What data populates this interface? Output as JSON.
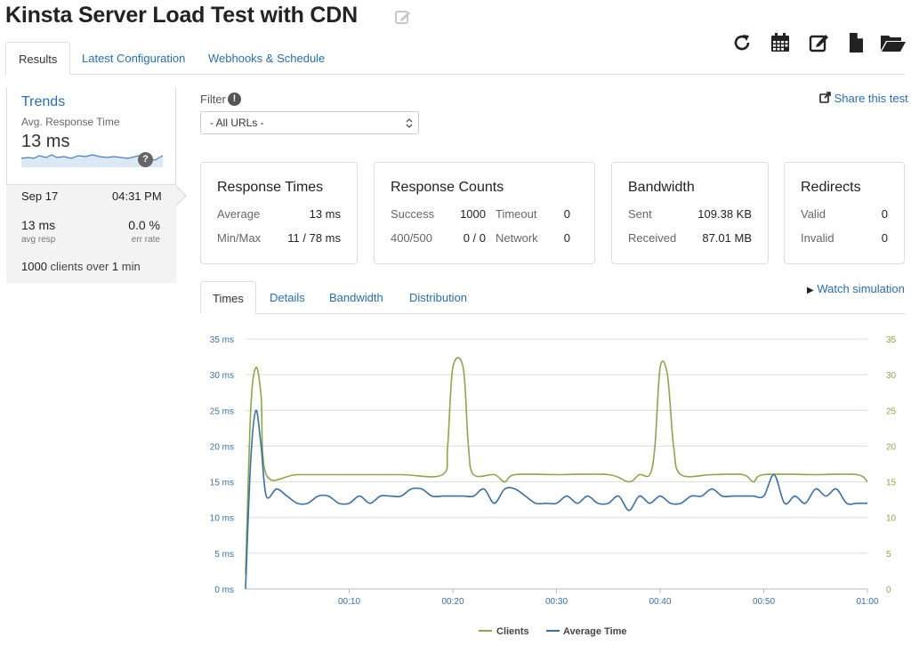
{
  "page": {
    "title": "Kinsta Server Load Test with CDN"
  },
  "tabs": [
    {
      "label": "Results",
      "active": true
    },
    {
      "label": "Latest Configuration",
      "active": false
    },
    {
      "label": "Webhooks & Schedule",
      "active": false
    }
  ],
  "toolbar_icons": [
    "refresh-icon",
    "calendar-icon",
    "edit-icon",
    "document-icon",
    "folder-open-icon"
  ],
  "sidebar": {
    "trends_title": "Trends",
    "trends_subtitle": "Avg. Response Time",
    "trends_value": "13 ms",
    "help_badge": "?",
    "run": {
      "date": "Sep 17",
      "time": "04:31 PM",
      "avg_resp_value": "13 ms",
      "avg_resp_label": "avg resp",
      "err_rate_value": "0.0 %",
      "err_rate_label": "err rate",
      "clients_count": "1000",
      "clients_text": "clients over",
      "duration_value": "1",
      "duration_unit": "min"
    }
  },
  "filter": {
    "label": "Filter",
    "info": "!",
    "selected": "- All URLs -",
    "share_label": "Share this test"
  },
  "cards": {
    "response_times": {
      "title": "Response Times",
      "average_label": "Average",
      "average_value": "13 ms",
      "minmax_label": "Min/Max",
      "minmax_value": "11 / 78 ms"
    },
    "response_counts": {
      "title": "Response Counts",
      "success_label": "Success",
      "success_value": "1000",
      "timeout_label": "Timeout",
      "timeout_value": "0",
      "err_label": "400/500",
      "err_value": "0 / 0",
      "network_label": "Network",
      "network_value": "0"
    },
    "bandwidth": {
      "title": "Bandwidth",
      "sent_label": "Sent",
      "sent_value": "109.38 KB",
      "received_label": "Received",
      "received_value": "87.01 MB"
    },
    "redirects": {
      "title": "Redirects",
      "valid_label": "Valid",
      "valid_value": "0",
      "invalid_label": "Invalid",
      "invalid_value": "0"
    }
  },
  "chart_tabs": [
    {
      "label": "Times",
      "active": true
    },
    {
      "label": "Details",
      "active": false
    },
    {
      "label": "Bandwidth",
      "active": false
    },
    {
      "label": "Distribution",
      "active": false
    }
  ],
  "watch_label": "Watch simulation",
  "colors": {
    "clients": "#8aa84b",
    "average_time": "#3a6ea5",
    "link": "#2a6db0"
  },
  "chart_data": {
    "type": "line",
    "title": "",
    "x_ticks": [
      "00:10",
      "00:20",
      "00:30",
      "00:40",
      "00:50",
      "01:00"
    ],
    "x_range_seconds": [
      0,
      60
    ],
    "y_left_ticks": [
      "0 ms",
      "5 ms",
      "10 ms",
      "15 ms",
      "20 ms",
      "25 ms",
      "30 ms",
      "35 ms"
    ],
    "y_left_range": [
      0,
      35
    ],
    "y_right_ticks": [
      "0",
      "5",
      "10",
      "15",
      "20",
      "25",
      "30",
      "35"
    ],
    "y_right_range": [
      0,
      35
    ],
    "grid": true,
    "legend_position": "bottom",
    "series": [
      {
        "name": "Clients",
        "axis": "right",
        "x": [
          0,
          0.5,
          1,
          1.5,
          2,
          5,
          10,
          15,
          19,
          19.5,
          20,
          21,
          21.5,
          22,
          24,
          25,
          26,
          30,
          35,
          37,
          38,
          39,
          39.5,
          40,
          40.7,
          41.3,
          42,
          45,
          48,
          49,
          50,
          55,
          59,
          60
        ],
        "values": [
          2,
          25,
          31,
          27,
          16,
          16,
          16,
          16,
          16,
          20,
          31,
          31,
          20,
          16,
          16,
          15,
          16,
          16,
          16,
          15,
          16,
          16,
          20,
          31,
          30,
          20,
          16,
          16,
          16,
          15,
          16,
          16,
          16,
          15
        ]
      },
      {
        "name": "Average Time",
        "axis": "left",
        "x": [
          0,
          0.5,
          1,
          1.5,
          2,
          3,
          4,
          5,
          6,
          7,
          8,
          9,
          10,
          11,
          12,
          13,
          14,
          15,
          16,
          17,
          18,
          19,
          20,
          21,
          22,
          23,
          24,
          25,
          26,
          27,
          28,
          29,
          30,
          31,
          32,
          33,
          34,
          35,
          36,
          37,
          38,
          39,
          40,
          41,
          42,
          43,
          44,
          45,
          46,
          47,
          48,
          49,
          50,
          51,
          52,
          53,
          54,
          55,
          56,
          57,
          58,
          59,
          60
        ],
        "values": [
          0,
          18,
          25,
          20,
          13,
          14,
          13,
          12,
          12,
          13,
          13,
          12,
          12,
          13,
          12,
          13,
          13,
          13,
          14,
          14,
          13,
          13,
          13,
          13,
          13,
          14,
          12,
          14,
          14,
          13,
          12,
          12,
          12,
          13,
          12,
          13,
          12,
          12,
          13,
          11,
          13,
          12,
          13,
          12,
          12,
          13,
          13,
          14,
          13,
          13,
          13,
          13,
          13,
          16,
          12,
          13,
          12,
          14,
          13,
          14,
          12,
          12,
          12
        ]
      }
    ]
  }
}
